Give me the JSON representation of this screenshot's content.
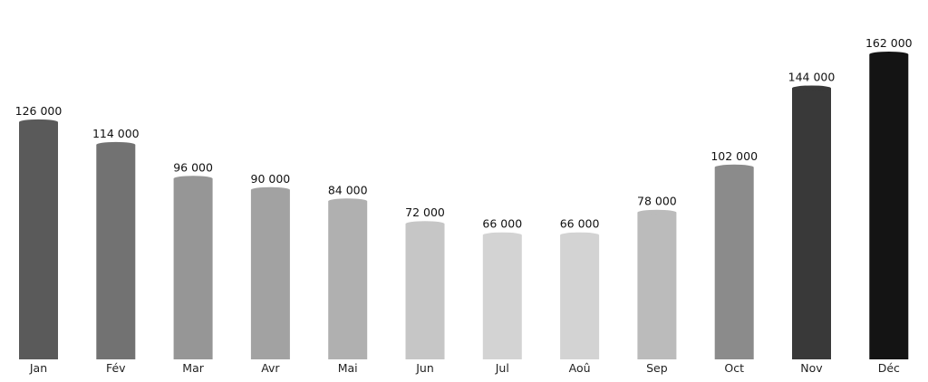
{
  "chart_data": {
    "type": "bar",
    "title": "",
    "xlabel": "",
    "ylabel": "",
    "categories": [
      "Jan",
      "Fév",
      "Mar",
      "Avr",
      "Mai",
      "Jun",
      "Jul",
      "Aoû",
      "Sep",
      "Oct",
      "Nov",
      "Déc"
    ],
    "values": [
      126000,
      114000,
      96000,
      90000,
      84000,
      72000,
      66000,
      66000,
      78000,
      102000,
      144000,
      162000
    ],
    "value_labels": [
      "126 000",
      "114 000",
      "96 000",
      "90 000",
      "84 000",
      "72 000",
      "66 000",
      "66 000",
      "78 000",
      "102 000",
      "144 000",
      "162 000"
    ],
    "bar_colors": [
      "#5a5a5a",
      "#727272",
      "#969696",
      "#a2a2a2",
      "#b0b0b0",
      "#c6c6c6",
      "#d3d3d3",
      "#d3d3d3",
      "#bbbbbb",
      "#8b8b8b",
      "#393939",
      "#141414"
    ],
    "ylim": [
      0,
      180000
    ],
    "grid": false,
    "legend": "none"
  }
}
